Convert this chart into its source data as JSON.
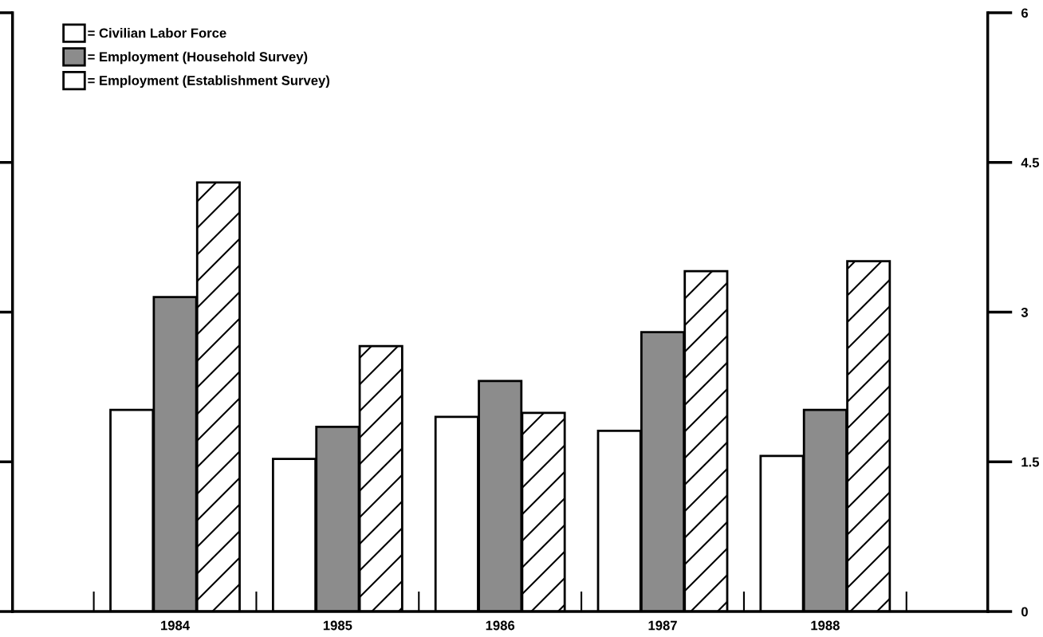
{
  "chart_data": {
    "type": "bar",
    "categories": [
      "1984",
      "1985",
      "1986",
      "1987",
      "1988"
    ],
    "series": [
      {
        "name": "= Civilian Labor Force",
        "color": "#ffffff",
        "values": [
          2.02,
          1.53,
          1.95,
          1.81,
          1.56
        ]
      },
      {
        "name": "= Employment (Household Survey)",
        "color": "#8c8c8c",
        "values": [
          3.15,
          1.85,
          2.31,
          2.8,
          2.02
        ]
      },
      {
        "name": "= Employment (Establishment Survey)",
        "color": "#ffffff",
        "values": [
          4.3,
          2.66,
          1.99,
          3.41,
          3.51
        ]
      }
    ],
    "ylim": [
      0,
      6
    ],
    "yticks": [
      0,
      1.5,
      3,
      4.5,
      6
    ],
    "grid": false,
    "legend": "top left"
  }
}
